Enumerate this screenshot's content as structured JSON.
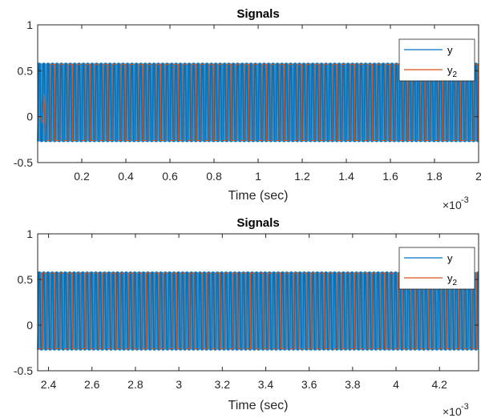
{
  "chart_data": [
    {
      "type": "line",
      "title": "Signals",
      "xlabel": "Time (sec)",
      "ylabel": "",
      "x_exponent_label": "×10",
      "x_exponent": "-3",
      "xlim": [
        0.0,
        0.002
      ],
      "ylim": [
        -0.5,
        1.0
      ],
      "xticks": [
        0.2,
        0.4,
        0.6,
        0.8,
        1,
        1.2,
        1.4,
        1.6,
        1.8,
        2
      ],
      "xtick_labels": [
        "0.2",
        "0.4",
        "0.6",
        "0.8",
        "1",
        "1.2",
        "1.4",
        "1.6",
        "1.8",
        "2"
      ],
      "yticks": [
        -0.5,
        0,
        0.5,
        1
      ],
      "ytick_labels": [
        "-0.5",
        "0",
        "0.5",
        "1"
      ],
      "grid": false,
      "legend": "top-right",
      "series": [
        {
          "name": "y",
          "color": "#0072BD",
          "description_values": {
            "min": -0.27,
            "max": 0.58,
            "period_sec": 2e-05
          },
          "x": [
            0.0,
            3e-06,
            8e-06,
            1.2e-05,
            1.7e-05,
            2e-05
          ],
          "y": [
            -0.27,
            0.58,
            0.52,
            -0.26,
            0.58,
            -0.27
          ]
        },
        {
          "name": "y2",
          "color": "#D95319",
          "description_values": {
            "low": -0.26,
            "high": 0.57,
            "period_sec": 4e-05,
            "duty": 0.5
          },
          "x": [
            0.0,
            1e-05,
            2.2e-05,
            3.1e-05,
            3.8e-05
          ],
          "y": [
            0.0,
            0.0,
            -0.06,
            0.25,
            -0.26
          ]
        }
      ]
    },
    {
      "type": "line",
      "title": "Signals",
      "xlabel": "Time (sec)",
      "ylabel": "",
      "x_exponent_label": "×10",
      "x_exponent": "-3",
      "xlim": [
        0.00235,
        0.00438
      ],
      "ylim": [
        -0.5,
        1.0
      ],
      "xticks": [
        2.4,
        2.6,
        2.8,
        3,
        3.2,
        3.4,
        3.6,
        3.8,
        4,
        4.2
      ],
      "xtick_labels": [
        "2.4",
        "2.6",
        "2.8",
        "3",
        "3.2",
        "3.4",
        "3.6",
        "3.8",
        "4",
        "4.2"
      ],
      "yticks": [
        -0.5,
        0,
        0.5,
        1
      ],
      "ytick_labels": [
        "-0.5",
        "0",
        "0.5",
        "1"
      ],
      "grid": false,
      "legend": "top-right",
      "series": [
        {
          "name": "y",
          "color": "#0072BD",
          "description_values": {
            "min": -0.27,
            "max": 0.58,
            "period_sec": 2e-05
          }
        },
        {
          "name": "y2",
          "color": "#D95319",
          "description_values": {
            "low": -0.26,
            "high": 0.57,
            "period_sec": 4e-05,
            "duty": 0.5
          }
        }
      ]
    }
  ],
  "legend_labels": {
    "y": "y",
    "y2_base": "y",
    "y2_sub": "2"
  }
}
